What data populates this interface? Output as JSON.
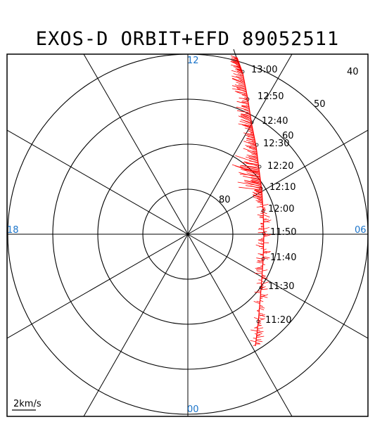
{
  "title": "EXOS-D ORBIT+EFD 89052511",
  "mlt_labels": {
    "top": "12",
    "bottom": "00",
    "left": "18",
    "right": "06"
  },
  "lat_labels": [
    "80",
    "60",
    "50",
    "40"
  ],
  "scale_label": "2km/s",
  "time_labels": [
    "13:00",
    "12:50",
    "12:40",
    "12:30",
    "12:20",
    "12:10",
    "12:00",
    "11:50",
    "11:40",
    "11:30",
    "11:20"
  ],
  "colors": {
    "trace": "#ff0000",
    "mlt_label": "#1a73c9",
    "grid": "#000000"
  }
}
